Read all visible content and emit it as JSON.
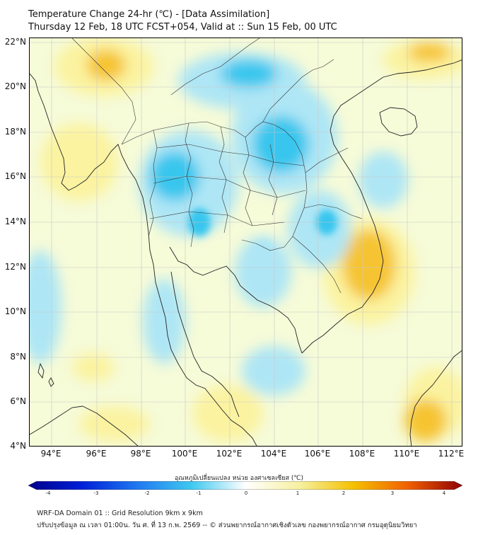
{
  "header": {
    "title_line1": "Temperature Change 24-hr (℃) - [Data Assimilation]",
    "title_line2": "Thursday 12 Feb, 18 UTC FCST+054, Valid at :: Sun 15 Feb, 00 UTC"
  },
  "map": {
    "lat_ticks": [
      "22°N",
      "20°N",
      "18°N",
      "16°N",
      "14°N",
      "12°N",
      "10°N",
      "8°N",
      "6°N",
      "4°N"
    ],
    "lon_ticks": [
      "94°E",
      "96°E",
      "98°E",
      "100°E",
      "102°E",
      "104°E",
      "106°E",
      "108°E",
      "110°E",
      "112°E"
    ],
    "extent": {
      "lon_min": 93,
      "lon_max": 112.5,
      "lat_min": 4,
      "lat_max": 22.2
    }
  },
  "colorbar": {
    "label": "อุณหภูมิเปลี่ยนแปลง หน่วย องศาเซลเซียส (℃)",
    "ticks": [
      "-4",
      "-3",
      "-2",
      "-1",
      "0",
      "1",
      "2",
      "3",
      "4"
    ],
    "colors": [
      "#00008a",
      "#0020d8",
      "#1f78f0",
      "#3ec8f0",
      "#ffffff",
      "#f6f0a0",
      "#f5c000",
      "#f06000",
      "#900000"
    ]
  },
  "footer": {
    "line1": "WRF-DA Domain 01 :: Grid Resolution 9km x 9km",
    "line2": "ปรับปรุงข้อมูล ณ เวลา 01:00น. วัน ศ. ที่ 13 ก.พ. 2569 -- © ส่วนพยากรณ์อากาศเชิงตัวเลข กองพยากรณ์อากาศ กรมอุตุนิยมวิทยา"
  },
  "field_colors": {
    "strong_cool": "#37c6ee",
    "mild_cool": "#aee6f5",
    "neutral": "#f6fbd8",
    "mild_warm": "#fbf3a0",
    "strong_warm": "#f6c431",
    "coastline": "#222222"
  }
}
